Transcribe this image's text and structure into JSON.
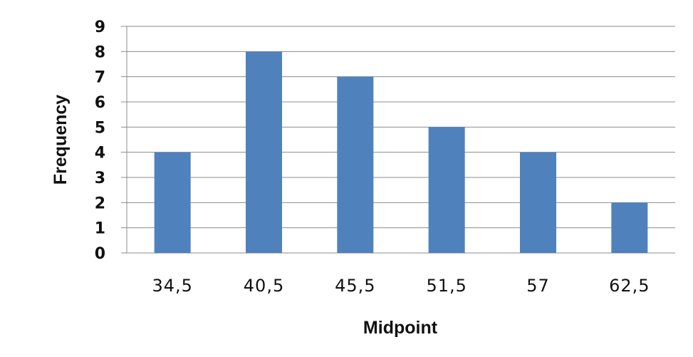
{
  "chart_data": {
    "type": "bar",
    "xlabel": "Midpoint",
    "ylabel": "Frequency",
    "categories": [
      "34,5",
      "40,5",
      "45,5",
      "51,5",
      "57",
      "62,5"
    ],
    "values": [
      4,
      8,
      7,
      5,
      4,
      2
    ],
    "ylim": [
      0,
      9
    ],
    "yticks": [
      "0",
      "1",
      "2",
      "3",
      "4",
      "5",
      "6",
      "7",
      "8",
      "9"
    ],
    "grid": true,
    "legend": "none",
    "bar_color": "#4f81bd",
    "grid_color": "#8c8c8c"
  }
}
